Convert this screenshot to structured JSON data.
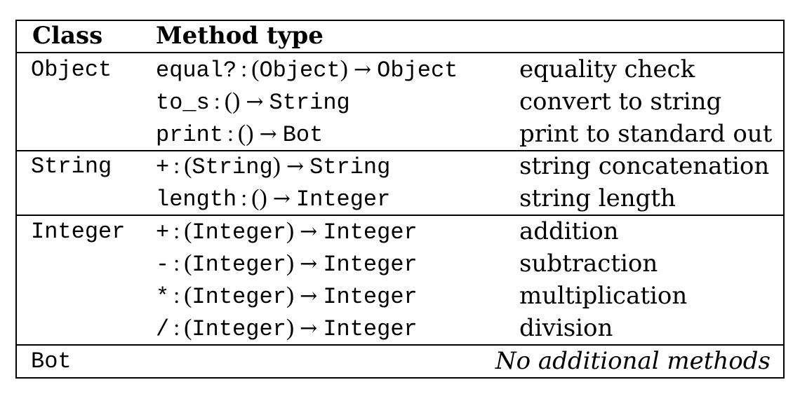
{
  "header": {
    "class": "Class",
    "method_type": "Method type"
  },
  "groups": [
    {
      "class": "Object",
      "rows": [
        {
          "name": "equal?",
          "param": "Object",
          "ret": "Object",
          "desc": "equality check"
        },
        {
          "name": "to_s",
          "param": "",
          "ret": "String",
          "desc": "convert to string"
        },
        {
          "name": "print",
          "param": "",
          "ret": "Bot",
          "desc": "print to standard out"
        }
      ]
    },
    {
      "class": "String",
      "rows": [
        {
          "name": "+",
          "param": "String",
          "ret": "String",
          "desc": "string concatenation"
        },
        {
          "name": "length",
          "param": "",
          "ret": "Integer",
          "desc": "string length"
        }
      ]
    },
    {
      "class": "Integer",
      "rows": [
        {
          "name": "+",
          "param": "Integer",
          "ret": "Integer",
          "desc": "addition"
        },
        {
          "name": "-",
          "param": "Integer",
          "ret": "Integer",
          "desc": "subtraction"
        },
        {
          "name": "*",
          "param": "Integer",
          "ret": "Integer",
          "desc": "multiplication"
        },
        {
          "name": "/",
          "param": "Integer",
          "ret": "Integer",
          "desc": "division"
        }
      ]
    }
  ],
  "bot": {
    "class": "Bot",
    "note": "No additional methods"
  },
  "symbols": {
    "colon": ":",
    "open_paren": "(",
    "close_paren": ")",
    "arrow": "→"
  }
}
